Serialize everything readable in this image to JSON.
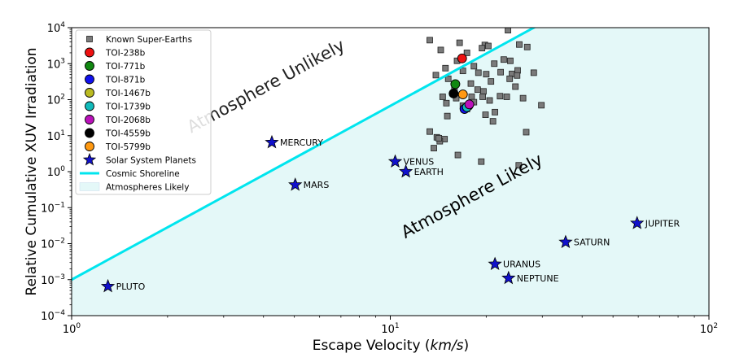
{
  "chart_data": {
    "type": "scatter",
    "xlabel_main": "Escape Velocity ",
    "xlabel_unit": "km/s",
    "xlabel_close": ")",
    "xlabel_open": "(",
    "ylabel": "Relative Cumulative XUV Irradiation",
    "x_scale": "log",
    "y_scale": "log",
    "xlim": [
      1,
      100
    ],
    "ylim": [
      0.0001,
      10000
    ],
    "x_ticks": [
      {
        "value": 1,
        "base": "10",
        "exp": "0"
      },
      {
        "value": 10,
        "base": "10",
        "exp": "1"
      },
      {
        "value": 100,
        "base": "10",
        "exp": "2"
      }
    ],
    "y_ticks": [
      {
        "value": 0.0001,
        "base": "10",
        "exp": "−4"
      },
      {
        "value": 0.001,
        "base": "10",
        "exp": "−3"
      },
      {
        "value": 0.01,
        "base": "10",
        "exp": "−2"
      },
      {
        "value": 0.1,
        "base": "10",
        "exp": "−1"
      },
      {
        "value": 1,
        "base": "10",
        "exp": "0"
      },
      {
        "value": 10,
        "base": "10",
        "exp": "1"
      },
      {
        "value": 100,
        "base": "10",
        "exp": "2"
      },
      {
        "value": 1000,
        "base": "10",
        "exp": "3"
      },
      {
        "value": 10000,
        "base": "10",
        "exp": "4"
      }
    ],
    "shoreline": {
      "name": "Cosmic Shoreline",
      "x": [
        1,
        28.2
      ],
      "y": [
        0.001,
        10000
      ],
      "color": "#00e5ee"
    },
    "fill": {
      "name": "Atmospheres Likely",
      "color": "#e4f8f8"
    },
    "region_labels": {
      "unlikely": "Atmosphere Unlikely",
      "likely": "Atmosphere Likely"
    },
    "super_earths": {
      "name": "Known Super-Earths",
      "color": "#7a7a7a",
      "points": [
        [
          13.3,
          4500
        ],
        [
          16.5,
          3800
        ],
        [
          19.8,
          3300
        ],
        [
          23.4,
          8500
        ],
        [
          25.4,
          3400
        ],
        [
          26.9,
          2900
        ],
        [
          14.4,
          2400
        ],
        [
          17.4,
          2000
        ],
        [
          19.4,
          2700
        ],
        [
          20.3,
          3100
        ],
        [
          16.2,
          1200
        ],
        [
          21.2,
          1000
        ],
        [
          22.7,
          1300
        ],
        [
          23.8,
          1200
        ],
        [
          25.1,
          650
        ],
        [
          28.2,
          560
        ],
        [
          14.9,
          750
        ],
        [
          16.9,
          630
        ],
        [
          18.3,
          850
        ],
        [
          18.9,
          560
        ],
        [
          20.0,
          510
        ],
        [
          22.2,
          580
        ],
        [
          24.1,
          520
        ],
        [
          25.0,
          470
        ],
        [
          13.9,
          480
        ],
        [
          15.2,
          380
        ],
        [
          17.9,
          280
        ],
        [
          20.7,
          320
        ],
        [
          23.7,
          380
        ],
        [
          24.7,
          230
        ],
        [
          15.9,
          210
        ],
        [
          18.8,
          190
        ],
        [
          19.6,
          170
        ],
        [
          14.6,
          120
        ],
        [
          16.1,
          110
        ],
        [
          18.0,
          120
        ],
        [
          19.5,
          120
        ],
        [
          22.1,
          125
        ],
        [
          23.2,
          120
        ],
        [
          18.3,
          85
        ],
        [
          20.5,
          95
        ],
        [
          15.0,
          80
        ],
        [
          16.9,
          68
        ],
        [
          26.1,
          110
        ],
        [
          29.8,
          70
        ],
        [
          19.9,
          38
        ],
        [
          21.3,
          45
        ],
        [
          21.0,
          25
        ],
        [
          15.1,
          35
        ],
        [
          13.3,
          13
        ],
        [
          14.0,
          9
        ],
        [
          14.8,
          8
        ],
        [
          14.3,
          7
        ],
        [
          13.7,
          4.5
        ],
        [
          16.3,
          2.9
        ],
        [
          19.3,
          1.9
        ],
        [
          26.7,
          12.5
        ],
        [
          25.3,
          1.5
        ],
        [
          14.2,
          8.5
        ],
        [
          17.4,
          55
        ]
      ]
    },
    "toi_series": [
      {
        "name": "TOI-238b",
        "color": "#ee1111",
        "x": 16.8,
        "y": 1400
      },
      {
        "name": "TOI-771b",
        "color": "#118811",
        "x": 16.0,
        "y": 270
      },
      {
        "name": "TOI-871b",
        "color": "#1111ee",
        "x": 17.1,
        "y": 55
      },
      {
        "name": "TOI-1467b",
        "color": "#bbbb22",
        "x": 17.6,
        "y": 68
      },
      {
        "name": "TOI-1739b",
        "color": "#11bbbb",
        "x": 17.4,
        "y": 62
      },
      {
        "name": "TOI-2068b",
        "color": "#bb11bb",
        "x": 17.7,
        "y": 74
      },
      {
        "name": "TOI-4559b",
        "color": "#000000",
        "x": 15.8,
        "y": 148
      },
      {
        "name": "TOI-5799b",
        "color": "#ff9911",
        "x": 16.9,
        "y": 140
      }
    ],
    "planets": {
      "name": "Solar System Planets",
      "color": "#1111cc",
      "points": [
        {
          "label": "MERCURY",
          "x": 4.25,
          "y": 6.5
        },
        {
          "label": "VENUS",
          "x": 10.36,
          "y": 1.9
        },
        {
          "label": "EARTH",
          "x": 11.19,
          "y": 1.0
        },
        {
          "label": "MARS",
          "x": 5.03,
          "y": 0.43
        },
        {
          "label": "JUPITER",
          "x": 59.5,
          "y": 0.037
        },
        {
          "label": "SATURN",
          "x": 35.5,
          "y": 0.011
        },
        {
          "label": "URANUS",
          "x": 21.3,
          "y": 0.0027
        },
        {
          "label": "NEPTUNE",
          "x": 23.5,
          "y": 0.0011
        },
        {
          "label": "PLUTO",
          "x": 1.3,
          "y": 0.00065
        }
      ]
    }
  }
}
